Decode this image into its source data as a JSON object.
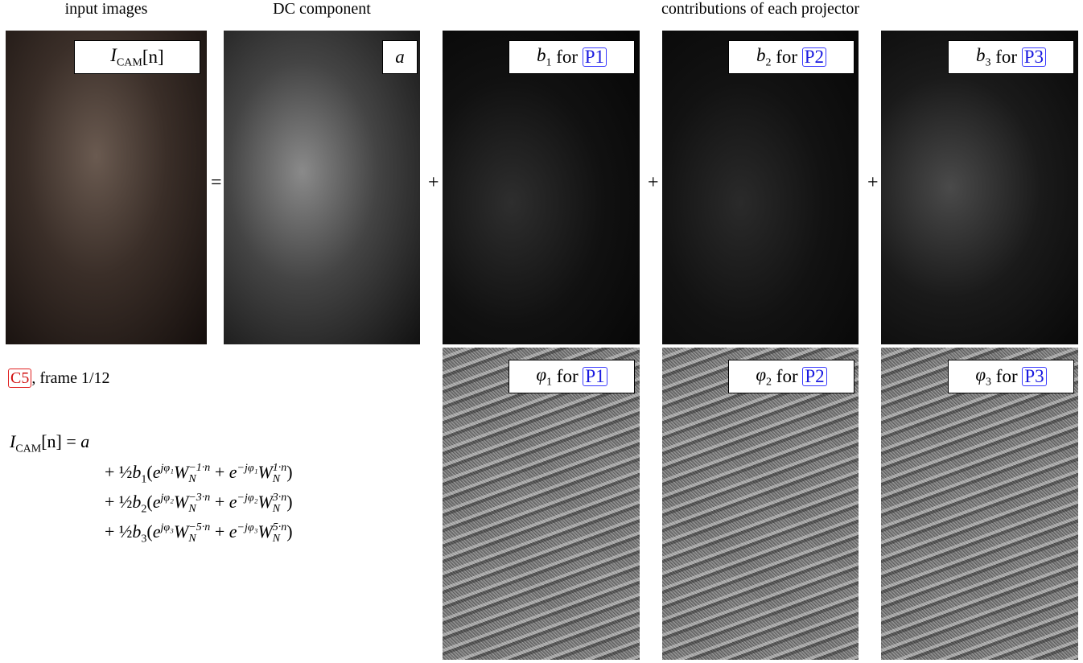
{
  "headers": [
    "input images",
    "DC component",
    "contributions of each projector"
  ],
  "operators": [
    "=",
    "+",
    "+",
    "+"
  ],
  "top_panels": [
    {
      "label": [
        {
          "base": "I",
          "sub": "CAM"
        },
        "[n]"
      ]
    },
    {
      "label": [
        {
          "base": "a"
        }
      ]
    },
    {
      "label": [
        {
          "base": "b",
          "sub": "1"
        },
        " for "
      ],
      "ref": "P1"
    },
    {
      "label": [
        {
          "base": "b",
          "sub": "2"
        },
        " for "
      ],
      "ref": "P2"
    },
    {
      "label": [
        {
          "base": "b",
          "sub": "3"
        },
        " for "
      ],
      "ref": "P3"
    }
  ],
  "bottom_panels": [
    {
      "label": [
        {
          "base": "φ",
          "sub": "1"
        },
        " for "
      ],
      "ref": "P1"
    },
    {
      "label": [
        {
          "base": "φ",
          "sub": "2"
        },
        " for "
      ],
      "ref": "P2"
    },
    {
      "label": [
        {
          "base": "φ",
          "sub": "3"
        },
        " for "
      ],
      "ref": "P3"
    }
  ],
  "caption": {
    "ref": "C5",
    "text": ", frame 1/12"
  },
  "equation": [
    [
      {
        "base": "I",
        "sub": "CAM"
      },
      "[n] = ",
      {
        "base": "a"
      }
    ],
    [
      "+ ",
      "½",
      {
        "base": "b",
        "sub": "1"
      },
      "(",
      {
        "base": "e",
        "sup": "jφ₁"
      },
      {
        "base": "W",
        "sub": "N",
        "sup": "−1·n"
      },
      " + ",
      {
        "base": "e",
        "sup": "−jφ₁"
      },
      {
        "base": "W",
        "sub": "N",
        "sup": "1·n"
      },
      ")"
    ],
    [
      "+ ",
      "½",
      {
        "base": "b",
        "sub": "2"
      },
      "(",
      {
        "base": "e",
        "sup": "jφ₂"
      },
      {
        "base": "W",
        "sub": "N",
        "sup": "−3·n"
      },
      " + ",
      {
        "base": "e",
        "sup": "−jφ₂"
      },
      {
        "base": "W",
        "sub": "N",
        "sup": "3·n"
      },
      ")"
    ],
    [
      "+ ",
      "½",
      {
        "base": "b",
        "sub": "3"
      },
      "(",
      {
        "base": "e",
        "sup": "jφ₃"
      },
      {
        "base": "W",
        "sub": "N",
        "sup": "−5·n"
      },
      " + ",
      {
        "base": "e",
        "sup": "−jφ₃"
      },
      {
        "base": "W",
        "sub": "N",
        "sup": "5·n"
      },
      ")"
    ]
  ]
}
